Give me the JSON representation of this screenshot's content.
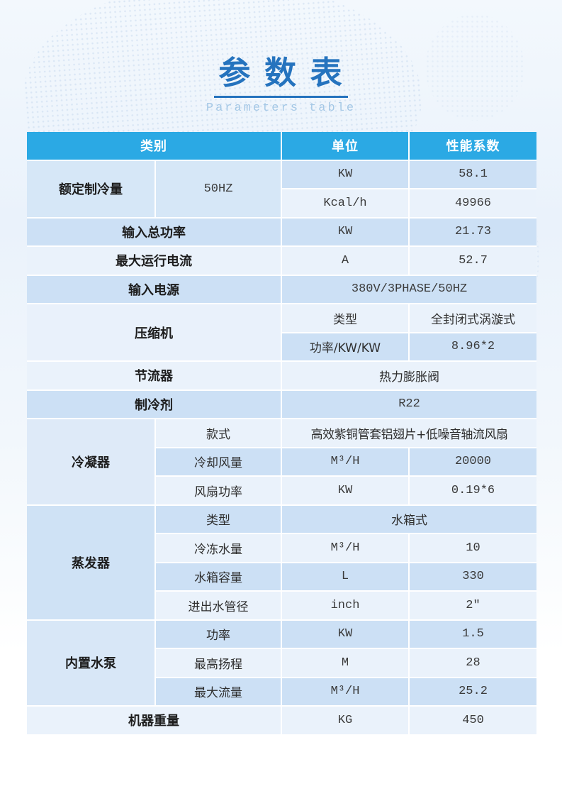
{
  "page": {
    "title_zh": "参 数 表",
    "title_en": "Parameters table"
  },
  "colors": {
    "header_bg": "#2ba9e4",
    "stripe_dark": "#cce0f5",
    "stripe_light": "#eaf2fb",
    "title_blue": "#2573be",
    "subtitle_blue": "#a5c8e6",
    "header_text": "#ffffff",
    "body_text": "#2b2b2b"
  },
  "table": {
    "header": {
      "category": "类别",
      "unit": "单位",
      "coefficient": "性能系数"
    },
    "rated_cooling": {
      "label": "额定制冷量",
      "frequency": "50HZ",
      "rows": [
        {
          "unit": "KW",
          "value": "58.1"
        },
        {
          "unit": "Kcal/h",
          "value": "49966"
        }
      ]
    },
    "input_total_power": {
      "label": "输入总功率",
      "unit": "KW",
      "value": "21.73"
    },
    "max_current": {
      "label": "最大运行电流",
      "unit": "A",
      "value": "52.7"
    },
    "power_supply": {
      "label": "输入电源",
      "value": "380V/3PHASE/50HZ"
    },
    "compressor": {
      "label": "压缩机",
      "rows": [
        {
          "name": "类型",
          "value": "全封闭式涡漩式"
        },
        {
          "name": "功率/KW/KW",
          "value": "8.96*2"
        }
      ]
    },
    "throttle": {
      "label": "节流器",
      "value": "热力膨胀阀"
    },
    "refrigerant": {
      "label": "制冷剂",
      "value": "R22"
    },
    "condenser": {
      "label": "冷凝器",
      "rows": [
        {
          "name": "款式",
          "value": "高效紫铜管套铝翅片+低噪音轴流风扇"
        },
        {
          "name": "冷却风量",
          "unit": "M³/H",
          "value": "20000"
        },
        {
          "name": "风扇功率",
          "unit": "KW",
          "value": "0.19*6"
        }
      ]
    },
    "evaporator": {
      "label": "蒸发器",
      "rows": [
        {
          "name": "类型",
          "value": "水箱式"
        },
        {
          "name": "冷冻水量",
          "unit": "M³/H",
          "value": "10"
        },
        {
          "name": "水箱容量",
          "unit": "L",
          "value": "330"
        },
        {
          "name": "进出水管径",
          "unit": "inch",
          "value": "2″"
        }
      ]
    },
    "pump": {
      "label": "内置水泵",
      "rows": [
        {
          "name": "功率",
          "unit": "KW",
          "value": "1.5"
        },
        {
          "name": "最高扬程",
          "unit": "M",
          "value": "28"
        },
        {
          "name": "最大流量",
          "unit": "M³/H",
          "value": "25.2"
        }
      ]
    },
    "weight": {
      "label": "机器重量",
      "unit": "KG",
      "value": "450"
    }
  }
}
